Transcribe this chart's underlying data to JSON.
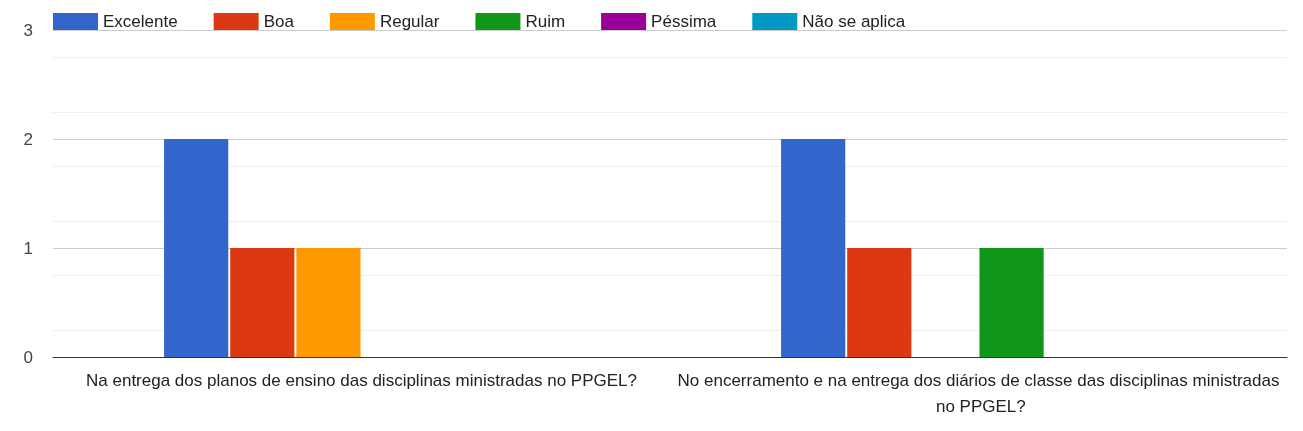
{
  "chart_data": {
    "type": "bar",
    "categories": [
      "Na entrega dos planos de ensino das disciplinas ministradas no PPGEL?",
      "No encerramento e na entrega dos diários de classe das disciplinas ministradas no PPGEL?"
    ],
    "series": [
      {
        "name": "Excelente",
        "color": "#3366cc",
        "values": [
          2,
          2
        ]
      },
      {
        "name": "Boa",
        "color": "#dc3912",
        "values": [
          1,
          1
        ]
      },
      {
        "name": "Regular",
        "color": "#ff9900",
        "values": [
          1,
          0
        ]
      },
      {
        "name": "Ruim",
        "color": "#109618",
        "values": [
          0,
          1
        ]
      },
      {
        "name": "Péssima",
        "color": "#990099",
        "values": [
          0,
          0
        ]
      },
      {
        "name": "Não se aplica",
        "color": "#0099c6",
        "values": [
          0,
          0
        ]
      }
    ],
    "ylim": [
      0,
      3
    ],
    "yticks": [
      0,
      1,
      2,
      3
    ],
    "grid": "y",
    "legend": "top left"
  }
}
